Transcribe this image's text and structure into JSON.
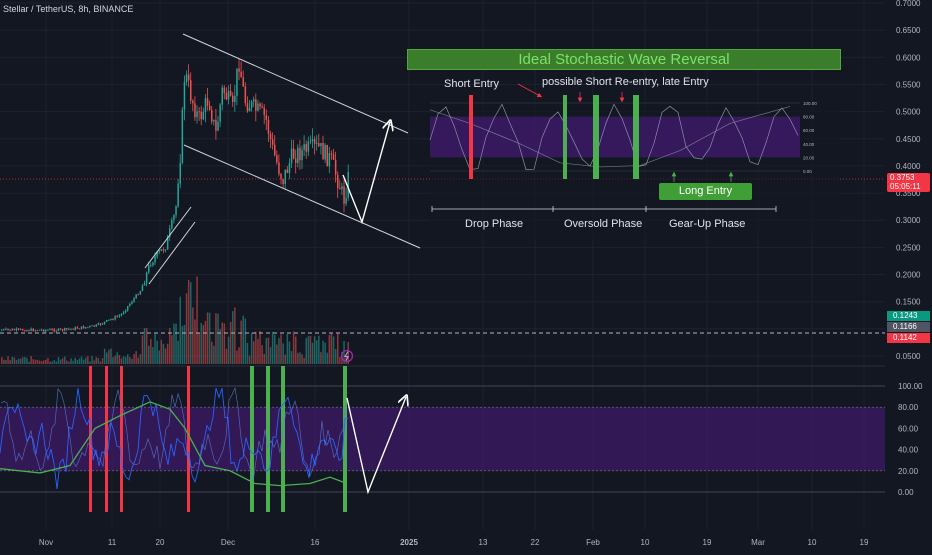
{
  "header": {
    "title": "Stellar / TetherUS, 8h, BINANCE"
  },
  "price_axis": {
    "ticks": [
      "0.7000",
      "0.6500",
      "0.6000",
      "0.5500",
      "0.5000",
      "0.4500",
      "0.4000",
      "0.3500",
      "0.3000",
      "0.2500",
      "0.2000",
      "0.1500",
      "0.1000",
      "0.0500"
    ],
    "last_price": "0.3753",
    "countdown": "05:05:11",
    "label_green": "0.1243",
    "label_grey": "0.1166",
    "label_red": "0.1142",
    "colors": {
      "last": "#f23645",
      "green": "#089981",
      "grey": "#4f5563",
      "red": "#f23645"
    }
  },
  "stoch_axis": {
    "ticks": [
      "100.00",
      "80.00",
      "60.00",
      "40.00",
      "20.00",
      "0.00"
    ]
  },
  "time_axis": {
    "ticks": [
      "Nov",
      "11",
      "20",
      "Dec",
      "16",
      "2025",
      "13",
      "22",
      "Feb",
      "10",
      "19",
      "Mar",
      "10",
      "19"
    ]
  },
  "annotation": {
    "title": "Ideal Stochastic Wave Reversal",
    "short_entry": "Short Entry",
    "reentry": "possible Short Re-entry, late Entry",
    "long_entry": "Long Entry",
    "phase_drop": "Drop Phase",
    "phase_oversold": "Oversold Phase",
    "phase_gearup": "Gear-Up Phase",
    "mini_ticks": [
      "100.00",
      "80.00",
      "60.00",
      "40.00",
      "20.00",
      "0.00"
    ]
  },
  "colors": {
    "background": "#131722",
    "up_candle": "#26a69a",
    "down_candle": "#ef5350",
    "stoch_band": "#3d1a66",
    "k_line": "#2962ff",
    "d_line": "#4caf50",
    "signal_red": "#f23645",
    "signal_green": "#4caf50",
    "title_banner": "#3a7d2a",
    "title_text": "#7ee06a"
  },
  "icons": [
    "flash-event-icon"
  ]
}
